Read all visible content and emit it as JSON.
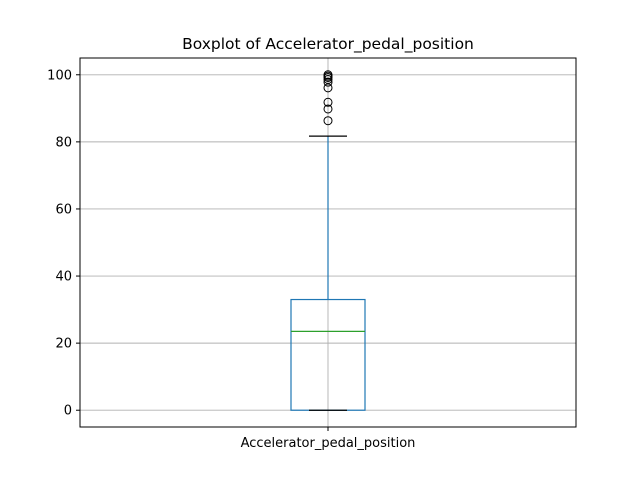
{
  "chart_data": {
    "type": "boxplot",
    "title": "Boxplot of Accelerator_pedal_position",
    "xlabel": "",
    "ylabel": "",
    "categories": [
      "Accelerator_pedal_position"
    ],
    "ylim": [
      -5,
      105
    ],
    "yticks": [
      0,
      20,
      40,
      60,
      80,
      100
    ],
    "ytick_labels": [
      "0",
      "20",
      "40",
      "60",
      "80",
      "100"
    ],
    "grid": true,
    "box": {
      "whisker_low": 0,
      "q1": 0,
      "median": 23.5,
      "q3": 33,
      "whisker_high": 81.7
    },
    "outliers": [
      86.3,
      89.8,
      91.8,
      96.1,
      97.8,
      98.6,
      99.2,
      99.6,
      100
    ],
    "colors": {
      "box": "#1f77b4",
      "median": "#2ca02c",
      "whisker": "#1f77b4",
      "cap": "#000000",
      "flier": "#000000",
      "grid": "#b0b0b0"
    }
  }
}
